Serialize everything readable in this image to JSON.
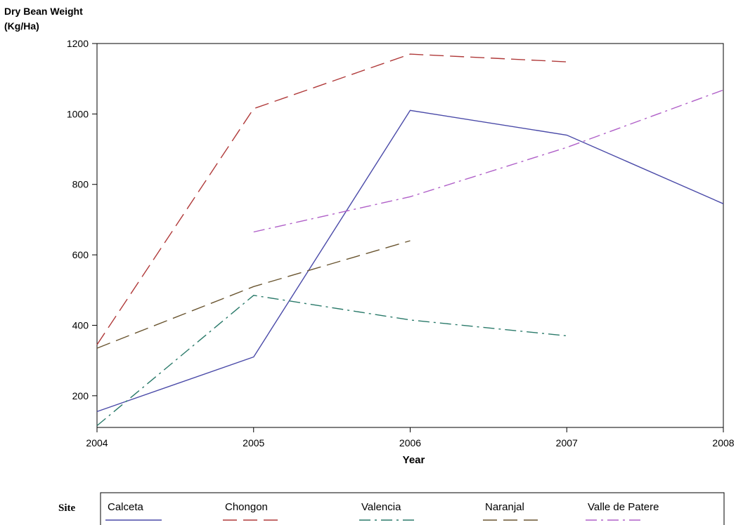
{
  "chart_data": {
    "type": "line",
    "ylabel_lines": [
      "Dry Bean Weight",
      "(Kg/Ha)"
    ],
    "xlabel": "Year",
    "xlim": [
      2004,
      2008
    ],
    "ylim": [
      110,
      1200
    ],
    "xticks": [
      2004,
      2005,
      2006,
      2007,
      2008
    ],
    "yticks": [
      200,
      400,
      600,
      800,
      1000,
      1200
    ],
    "grid": false,
    "legend_position": "bottom",
    "legend_title": "Site",
    "series": [
      {
        "name": "Calceta",
        "color": "#4a4aa8",
        "dash": "solid",
        "x": [
          2004,
          2005,
          2006,
          2007,
          2008
        ],
        "y": [
          155,
          310,
          1010,
          940,
          745
        ]
      },
      {
        "name": "Chongon",
        "color": "#b03a3a",
        "dash": "long-dash",
        "x": [
          2004,
          2005,
          2006,
          2007
        ],
        "y": [
          345,
          1015,
          1170,
          1148
        ]
      },
      {
        "name": "Valencia",
        "color": "#2a7a6a",
        "dash": "dash-dot",
        "x": [
          2004,
          2005,
          2006,
          2007
        ],
        "y": [
          115,
          485,
          415,
          370
        ]
      },
      {
        "name": "Naranjal",
        "color": "#6a5530",
        "dash": "long-dash",
        "x": [
          2004,
          2005,
          2006
        ],
        "y": [
          335,
          510,
          640
        ]
      },
      {
        "name": "Valle de  Patere",
        "color": "#b060c8",
        "dash": "dash-dot",
        "x": [
          2005,
          2006,
          2007,
          2008
        ],
        "y": [
          665,
          765,
          905,
          1068
        ]
      }
    ]
  }
}
